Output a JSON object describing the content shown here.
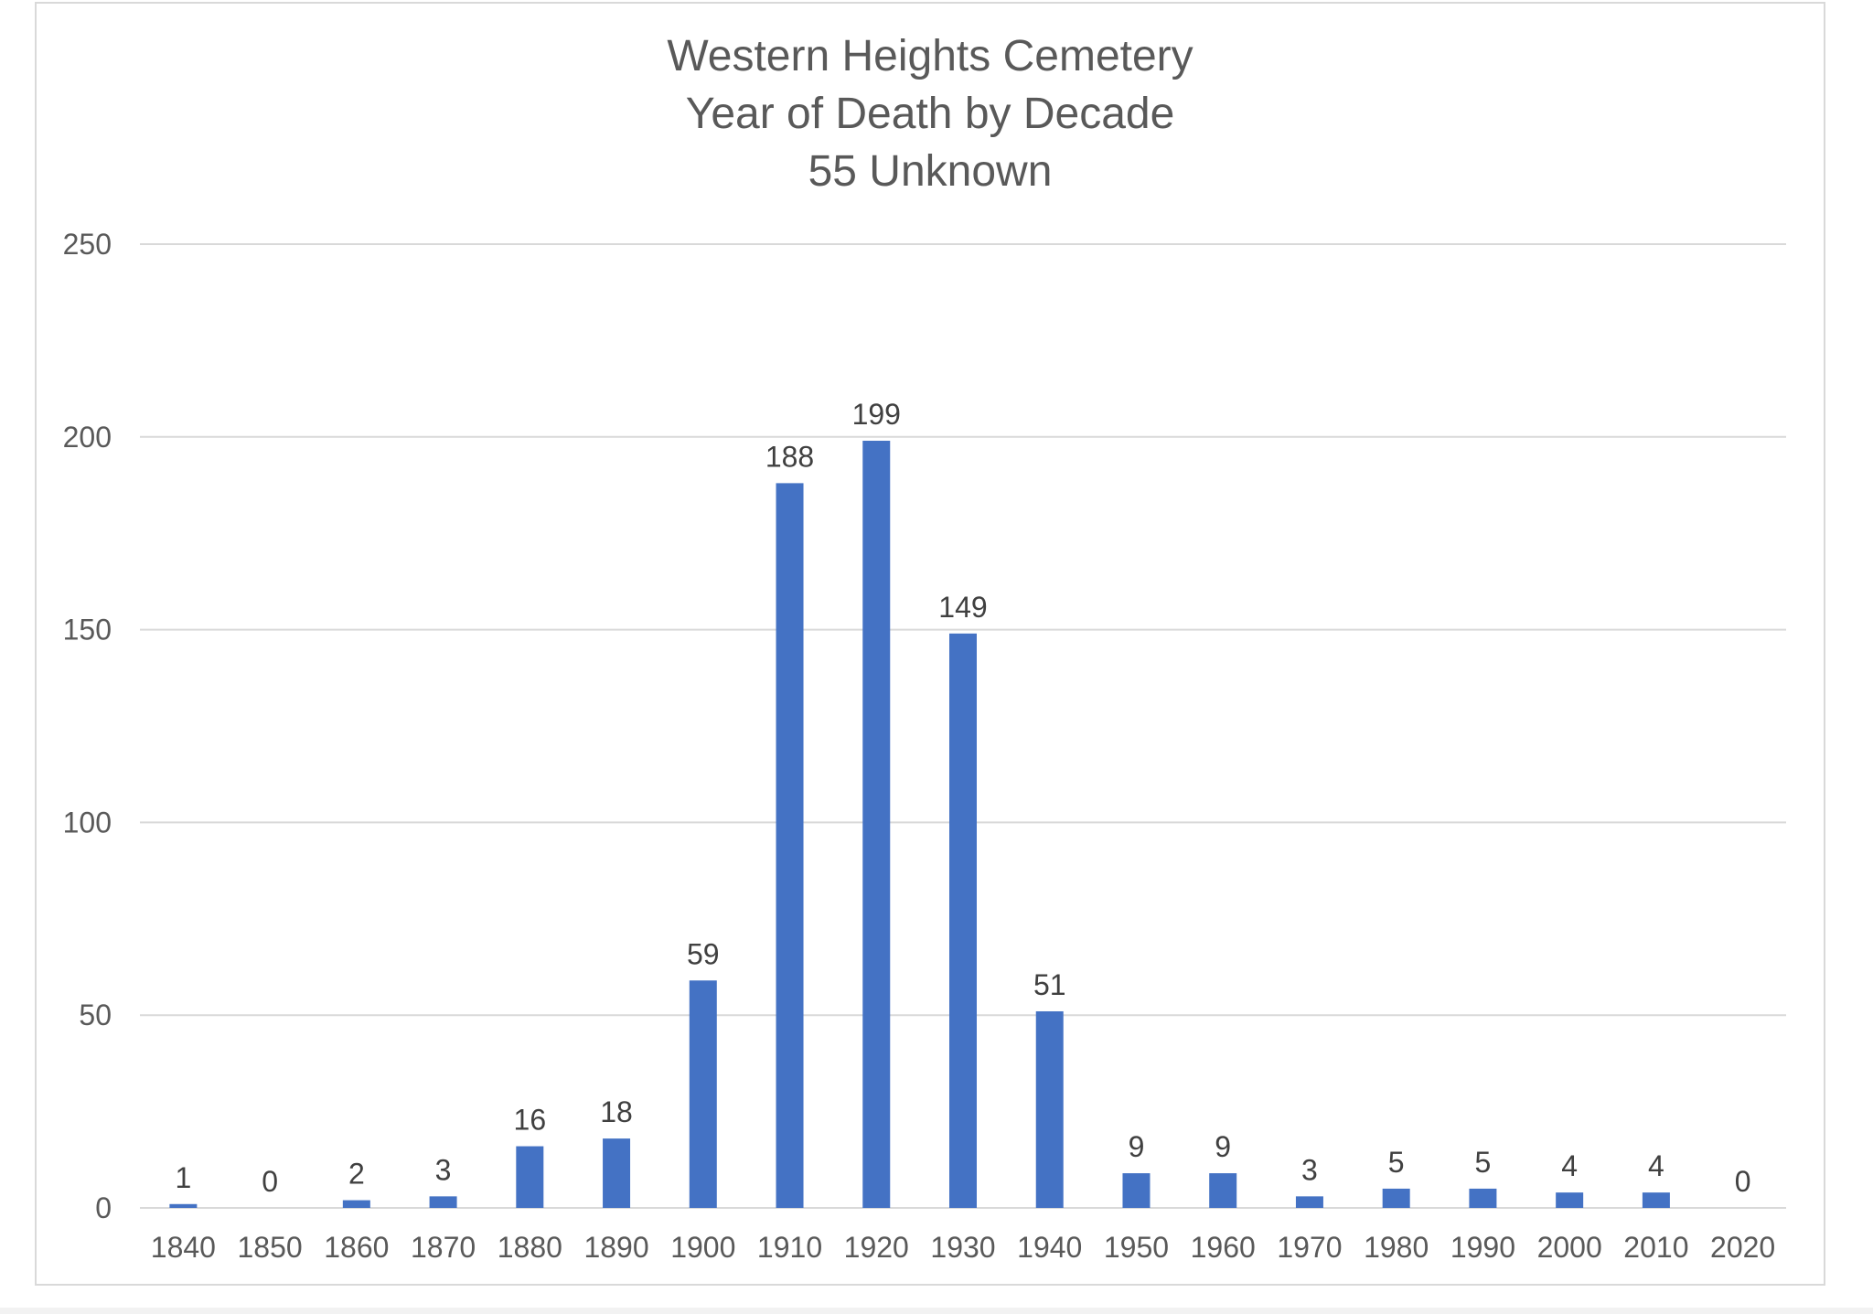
{
  "chart_data": {
    "type": "bar",
    "title_lines": [
      "Western Heights Cemetery",
      "Year of Death by Decade",
      "55 Unknown"
    ],
    "xlabel": "",
    "ylabel": "",
    "categories": [
      "1840",
      "1850",
      "1860",
      "1870",
      "1880",
      "1890",
      "1900",
      "1910",
      "1920",
      "1930",
      "1940",
      "1950",
      "1960",
      "1970",
      "1980",
      "1990",
      "2000",
      "2010",
      "2020"
    ],
    "values": [
      1,
      0,
      2,
      3,
      16,
      18,
      59,
      188,
      199,
      149,
      51,
      9,
      9,
      3,
      5,
      5,
      4,
      4,
      0
    ],
    "value_labels": [
      "1",
      "0",
      "2",
      "3",
      "16",
      "18",
      "59",
      "188",
      "199",
      "149",
      "51",
      "9",
      "9",
      "3",
      "5",
      "5",
      "4",
      "4",
      "0"
    ],
    "ylim": [
      0,
      250
    ],
    "yticks": [
      0,
      50,
      100,
      150,
      200,
      250
    ],
    "ytick_labels": [
      "0",
      "50",
      "100",
      "150",
      "200",
      "250"
    ],
    "grid": true,
    "legend": "none",
    "bar_color": "#4472c4",
    "grid_color": "#d9d9d9"
  }
}
